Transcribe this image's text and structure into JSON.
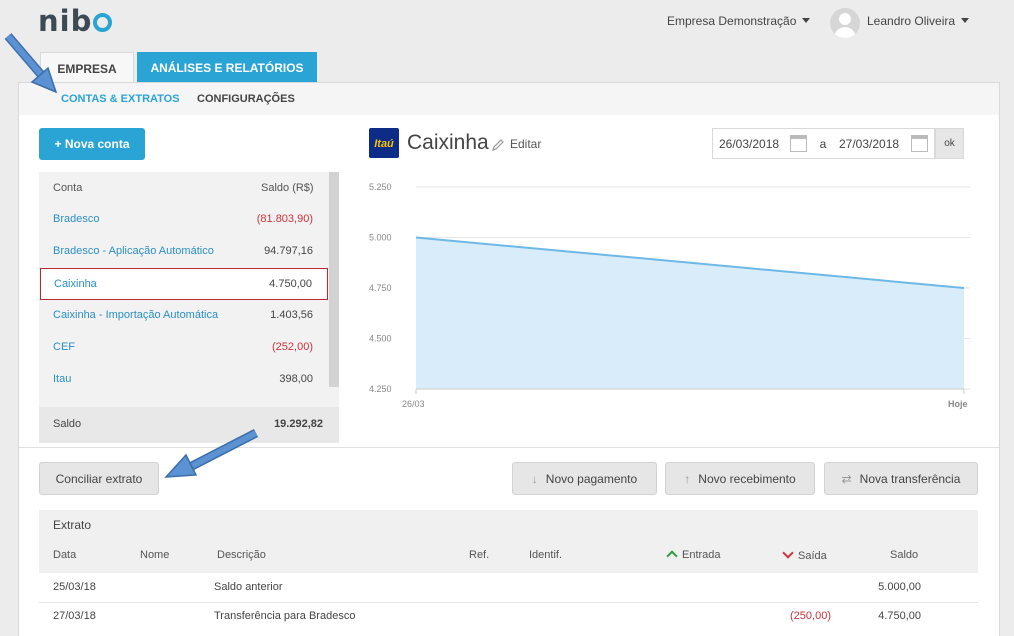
{
  "header": {
    "logo": "nib",
    "company": "Empresa Demonstração",
    "user": "Leandro Oliveira"
  },
  "tabs": [
    {
      "label": "EMPRESA"
    },
    {
      "label": "ANÁLISES E RELATÓRIOS"
    }
  ],
  "subnav": [
    {
      "label": "CONTAS & EXTRATOS"
    },
    {
      "label": "CONFIGURAÇÕES"
    }
  ],
  "new_account_button": "+ Nova conta",
  "accounts": {
    "col_account": "Conta",
    "col_balance": "Saldo (R$)",
    "rows": [
      {
        "name": "Bradesco",
        "balance": "(81.803,90)"
      },
      {
        "name": "Bradesco - Aplicação Automático",
        "balance": "94.797,16"
      },
      {
        "name": "Caixinha",
        "balance": "4.750,00"
      },
      {
        "name": "Caixinha - Importação Automática",
        "balance": "1.403,56"
      },
      {
        "name": "CEF",
        "balance": "(252,00)"
      },
      {
        "name": "Itau",
        "balance": "398,00"
      }
    ],
    "total_label": "Saldo",
    "total_value": "19.292,82"
  },
  "account_view": {
    "bank_logo": "Itaú",
    "title": "Caixinha",
    "edit_label": "Editar",
    "date_from": "26/03/2018",
    "date_sep": "a",
    "date_to": "27/03/2018",
    "ok_label": "ok"
  },
  "chart_data": {
    "type": "area",
    "x": [
      "26/03",
      "Hoje"
    ],
    "values": [
      5000,
      4750
    ],
    "ylim": [
      4250,
      5250
    ],
    "yticks": [
      "5.250",
      "5.000",
      "4.750",
      "4.500",
      "4.250"
    ],
    "ytick_values": [
      5250,
      5000,
      4750,
      4500,
      4250
    ],
    "xticks": [
      "26/03",
      "Hoje"
    ],
    "grid": true,
    "line_color": "#6cb8e6",
    "fill_color": "#d9ecf9"
  },
  "actions": {
    "conciliar": "Conciliar extrato",
    "novo_pagamento": "Novo pagamento",
    "novo_recebimento": "Novo recebimento",
    "nova_transferencia": "Nova transferência"
  },
  "extrato": {
    "title": "Extrato",
    "columns": {
      "data": "Data",
      "nome": "Nome",
      "descricao": "Descrição",
      "ref": "Ref.",
      "identif": "Identif.",
      "entrada": "Entrada",
      "saida": "Saída",
      "saldo": "Saldo"
    },
    "rows": [
      {
        "data": "25/03/18",
        "descricao": "Saldo anterior",
        "saida": "",
        "saldo": "5.000,00"
      },
      {
        "data": "27/03/18",
        "descricao": "Transferência para Bradesco",
        "saida": "(250,00)",
        "saldo": "4.750,00"
      }
    ]
  },
  "colors": {
    "accent": "#2aa4d4",
    "negative": "#c8343b",
    "positive": "#2ea043"
  }
}
